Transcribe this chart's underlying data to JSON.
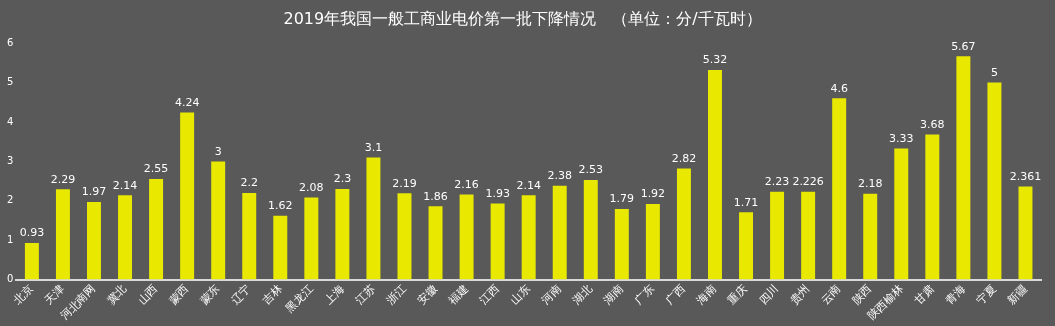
{
  "chart_data": {
    "type": "bar",
    "title": "2019年我国一般工商业电价第一批下降情况　（单位：分/千瓦时）",
    "categories": [
      "北京",
      "天津",
      "河北南网",
      "冀北",
      "山西",
      "蒙西",
      "蒙东",
      "辽宁",
      "吉林",
      "黑龙江",
      "上海",
      "江苏",
      "浙江",
      "安徽",
      "福建",
      "江西",
      "山东",
      "河南",
      "湖北",
      "湖南",
      "广东",
      "广西",
      "海南",
      "重庆",
      "四川",
      "贵州",
      "云南",
      "陕西",
      "陕西榆林",
      "甘肃",
      "青海",
      "宁夏",
      "新疆"
    ],
    "values": [
      0.93,
      2.29,
      1.97,
      2.14,
      2.55,
      4.24,
      3,
      2.2,
      1.62,
      2.08,
      2.3,
      3.1,
      2.19,
      1.86,
      2.16,
      1.93,
      2.14,
      2.38,
      2.53,
      1.79,
      1.92,
      2.82,
      5.32,
      1.71,
      2.23,
      2.226,
      4.6,
      2.18,
      3.33,
      3.68,
      5.67,
      5,
      2.361
    ],
    "color": "#e8e800",
    "ylim": [
      0,
      6
    ],
    "yticks": [
      0,
      1,
      2,
      3,
      4,
      5,
      6
    ],
    "grid": false,
    "legend": false,
    "data_labels": true
  }
}
